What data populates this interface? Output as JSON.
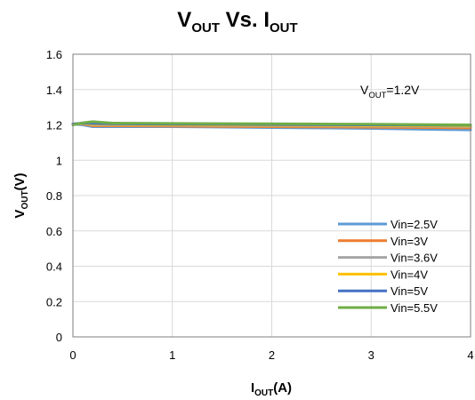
{
  "chart_data": {
    "type": "line",
    "title": {
      "main": "V",
      "sub1": "OUT",
      "mid": " Vs. I",
      "sub2": "OUT"
    },
    "xlabel": {
      "main": "I",
      "sub": "OUT",
      "tail": "(A)"
    },
    "ylabel": {
      "main": "V",
      "sub": "OUT",
      "tail": "(V)"
    },
    "annotation": {
      "main": "V",
      "sub": "OUT",
      "tail": "=1.2V"
    },
    "xlim": [
      0,
      4
    ],
    "ylim": [
      0,
      1.6
    ],
    "x_ticks": [
      "0",
      "1",
      "2",
      "3",
      "4"
    ],
    "y_ticks": [
      "0",
      "0.2",
      "0.4",
      "0.6",
      "0.8",
      "1",
      "1.2",
      "1.4",
      "1.6"
    ],
    "grid": true,
    "legend_position": "bottom-right",
    "series": [
      {
        "name": "Vin=2.5V",
        "color": "#5B9BD5",
        "points": [
          [
            0,
            1.205
          ],
          [
            0.1,
            1.2
          ],
          [
            0.2,
            1.19
          ],
          [
            0.4,
            1.19
          ],
          [
            1,
            1.19
          ],
          [
            2,
            1.185
          ],
          [
            3,
            1.18
          ],
          [
            4,
            1.172
          ]
        ]
      },
      {
        "name": "Vin=3V",
        "color": "#ED7D31",
        "points": [
          [
            0,
            1.205
          ],
          [
            0.1,
            1.205
          ],
          [
            0.2,
            1.195
          ],
          [
            0.4,
            1.195
          ],
          [
            1,
            1.193
          ],
          [
            2,
            1.19
          ],
          [
            3,
            1.187
          ],
          [
            4,
            1.183
          ]
        ]
      },
      {
        "name": "Vin=3.6V",
        "color": "#A5A5A5",
        "points": [
          [
            0,
            1.205
          ],
          [
            0.1,
            1.207
          ],
          [
            0.2,
            1.2
          ],
          [
            0.4,
            1.2
          ],
          [
            1,
            1.198
          ],
          [
            2,
            1.195
          ],
          [
            3,
            1.193
          ],
          [
            4,
            1.19
          ]
        ]
      },
      {
        "name": "Vin=4V",
        "color": "#FFC000",
        "points": [
          [
            0,
            1.205
          ],
          [
            0.1,
            1.208
          ],
          [
            0.2,
            1.203
          ],
          [
            0.4,
            1.203
          ],
          [
            1,
            1.2
          ],
          [
            2,
            1.198
          ],
          [
            3,
            1.196
          ],
          [
            4,
            1.193
          ]
        ]
      },
      {
        "name": "Vin=5V",
        "color": "#4472C4",
        "points": [
          [
            0,
            1.205
          ],
          [
            0.1,
            1.21
          ],
          [
            0.2,
            1.208
          ],
          [
            0.4,
            1.206
          ],
          [
            1,
            1.204
          ],
          [
            2,
            1.202
          ],
          [
            3,
            1.2
          ],
          [
            4,
            1.198
          ]
        ]
      },
      {
        "name": "Vin=5.5V",
        "color": "#70AD47",
        "points": [
          [
            0,
            1.2
          ],
          [
            0.1,
            1.212
          ],
          [
            0.2,
            1.218
          ],
          [
            0.4,
            1.21
          ],
          [
            1,
            1.208
          ],
          [
            2,
            1.206
          ],
          [
            3,
            1.204
          ],
          [
            4,
            1.2
          ]
        ]
      }
    ]
  }
}
